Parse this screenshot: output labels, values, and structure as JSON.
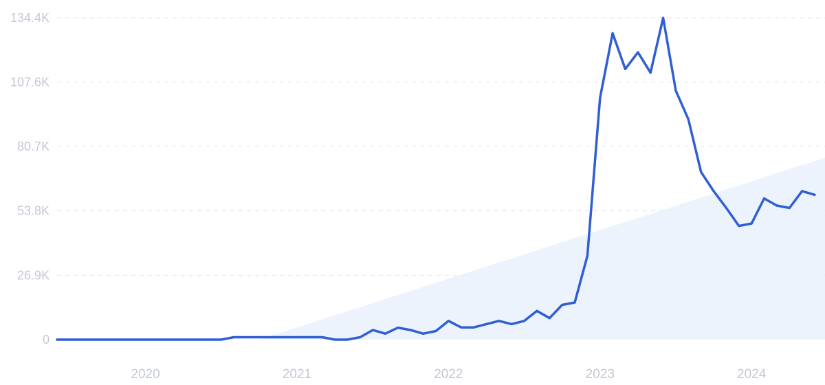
{
  "chart_data": {
    "type": "line",
    "title": "",
    "xlabel": "",
    "ylabel": "",
    "y_ticks": [
      {
        "value": 0,
        "label": "0"
      },
      {
        "value": 26900,
        "label": "26.9K"
      },
      {
        "value": 53800,
        "label": "53.8K"
      },
      {
        "value": 80700,
        "label": "80.7K"
      },
      {
        "value": 107600,
        "label": "107.6K"
      },
      {
        "value": 134400,
        "label": "134.4K"
      }
    ],
    "x_ticks": [
      {
        "value": "2020-01",
        "label": "2020"
      },
      {
        "value": "2021-01",
        "label": "2021"
      },
      {
        "value": "2022-01",
        "label": "2022"
      },
      {
        "value": "2023-01",
        "label": "2023"
      },
      {
        "value": "2024-01",
        "label": "2024"
      }
    ],
    "ylim": [
      0,
      134400
    ],
    "xlim": [
      "2019-06",
      "2024-06"
    ],
    "grid": true,
    "series": [
      {
        "color": "#2f5fd3",
        "x": [
          "2019-06",
          "2019-07",
          "2019-08",
          "2019-09",
          "2019-10",
          "2019-11",
          "2019-12",
          "2020-01",
          "2020-02",
          "2020-03",
          "2020-04",
          "2020-05",
          "2020-06",
          "2020-07",
          "2020-08",
          "2020-09",
          "2020-10",
          "2020-11",
          "2020-12",
          "2021-01",
          "2021-02",
          "2021-03",
          "2021-04",
          "2021-05",
          "2021-06",
          "2021-07",
          "2021-08",
          "2021-09",
          "2021-10",
          "2021-11",
          "2021-12",
          "2022-01",
          "2022-02",
          "2022-03",
          "2022-04",
          "2022-05",
          "2022-06",
          "2022-07",
          "2022-08",
          "2022-09",
          "2022-10",
          "2022-11",
          "2022-12",
          "2023-01",
          "2023-02",
          "2023-03",
          "2023-04",
          "2023-05",
          "2023-06",
          "2023-07",
          "2023-08",
          "2023-09",
          "2023-10",
          "2023-11",
          "2023-12",
          "2024-01",
          "2024-02",
          "2024-03",
          "2024-04",
          "2024-05",
          "2024-06"
        ],
        "values": [
          0,
          0,
          0,
          0,
          0,
          0,
          0,
          0,
          0,
          0,
          0,
          0,
          0,
          0,
          1000,
          1000,
          1000,
          1000,
          1000,
          1000,
          1000,
          1000,
          0,
          0,
          1000,
          4000,
          2500,
          5000,
          4000,
          2500,
          3600,
          7800,
          5100,
          5100,
          6500,
          7800,
          6500,
          7800,
          12000,
          9000,
          14500,
          15500,
          35000,
          101000,
          128000,
          113000,
          120000,
          111500,
          134400,
          104000,
          92000,
          70000,
          62000,
          55000,
          47500,
          48500,
          59000,
          56000,
          55000,
          62000,
          60500
        ]
      }
    ],
    "trend_area": {
      "color": "#e6effc",
      "start": [
        "2020-10",
        0
      ],
      "end": [
        "2024-06",
        76000
      ]
    }
  }
}
